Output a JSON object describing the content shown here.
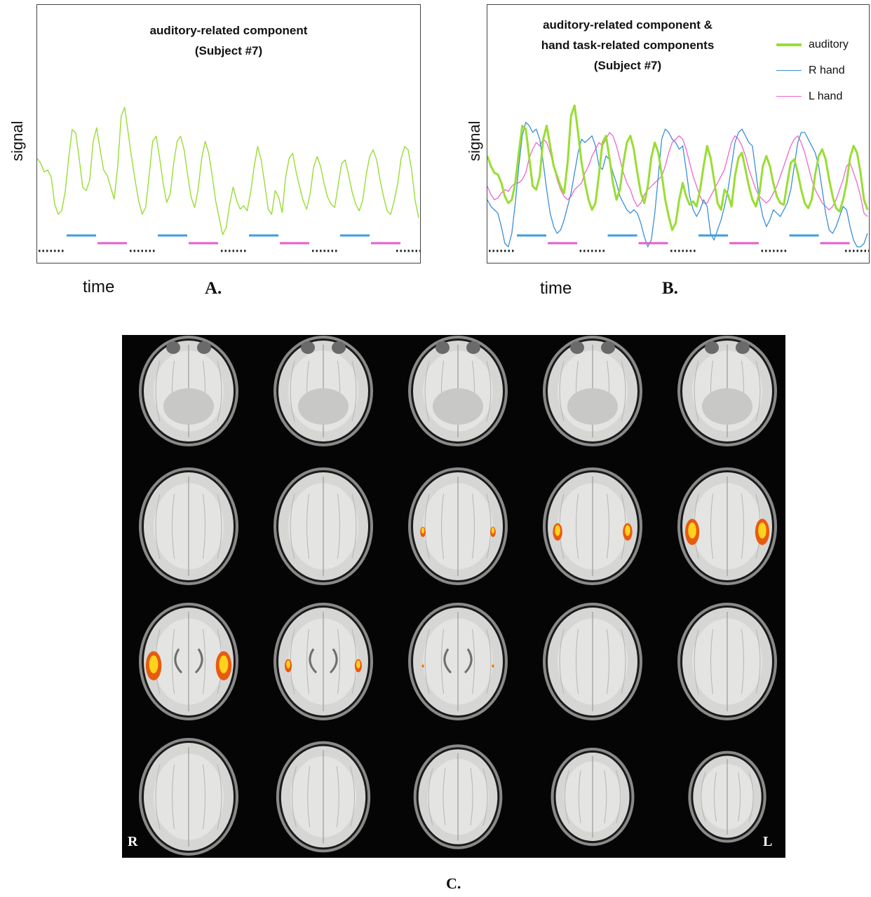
{
  "panel_a": {
    "title_line1": "auditory-related component",
    "title_line2": "(Subject #7)",
    "ylabel": "signal",
    "xlabel": "time",
    "panel_label": "A."
  },
  "panel_b": {
    "title_line1": "auditory-related component &",
    "title_line2": "hand task-related components",
    "title_line3": "(Subject #7)",
    "ylabel": "signal",
    "xlabel": "time",
    "panel_label": "B."
  },
  "panel_c": {
    "panel_label": "C.",
    "left_orientation": "R",
    "right_orientation": "L",
    "rows": 4,
    "columns": 5,
    "activation": [
      [
        0,
        0,
        0,
        0,
        0
      ],
      [
        0,
        0,
        0.35,
        0.6,
        0.9
      ],
      [
        1.0,
        0.45,
        0.05,
        0,
        0
      ],
      [
        0,
        0,
        0,
        0,
        0
      ]
    ]
  },
  "colors": {
    "auditory": "#99dd33",
    "r_hand": "#3a8fd8",
    "l_hand": "#ee66cc",
    "task_bar_blue": "#3a9ee0",
    "task_bar_pink": "#e45ccc",
    "rest_dots": "#222222"
  },
  "chart_data": [
    {
      "type": "line",
      "title": "auditory-related component (Subject #7)",
      "xlabel": "time",
      "ylabel": "signal",
      "grid": false,
      "x": [
        0,
        1,
        2,
        3,
        4,
        5,
        6,
        7,
        8,
        9,
        10,
        11,
        12,
        13,
        14,
        15,
        16,
        17,
        18,
        19,
        20,
        21,
        22,
        23,
        24,
        25,
        26,
        27,
        28,
        29,
        30,
        31,
        32,
        33,
        34,
        35,
        36,
        37,
        38,
        39,
        40,
        41,
        42,
        43,
        44,
        45,
        46,
        47,
        48,
        49,
        50,
        51,
        52,
        53,
        54,
        55,
        56,
        57,
        58,
        59,
        60,
        61,
        62,
        63,
        64,
        65,
        66,
        67,
        68,
        69,
        70,
        71,
        72,
        73,
        74,
        75,
        76,
        77,
        78,
        79,
        80,
        81,
        82,
        83,
        84,
        85,
        86,
        87,
        88,
        89,
        90,
        91,
        92,
        93,
        94,
        95,
        96,
        97,
        98,
        99,
        100,
        101,
        102,
        103,
        104,
        105,
        106,
        107,
        108,
        109
      ],
      "series": [
        {
          "name": "auditory",
          "values": [
            0.55,
            0.52,
            0.47,
            0.48,
            0.44,
            0.28,
            0.22,
            0.24,
            0.35,
            0.55,
            0.72,
            0.7,
            0.55,
            0.38,
            0.36,
            0.42,
            0.65,
            0.73,
            0.6,
            0.48,
            0.45,
            0.38,
            0.31,
            0.5,
            0.8,
            0.85,
            0.7,
            0.55,
            0.42,
            0.3,
            0.22,
            0.26,
            0.45,
            0.65,
            0.68,
            0.55,
            0.4,
            0.29,
            0.34,
            0.52,
            0.65,
            0.68,
            0.6,
            0.45,
            0.32,
            0.26,
            0.37,
            0.55,
            0.65,
            0.58,
            0.45,
            0.3,
            0.2,
            0.1,
            0.14,
            0.28,
            0.38,
            0.3,
            0.25,
            0.27,
            0.24,
            0.35,
            0.5,
            0.62,
            0.54,
            0.4,
            0.25,
            0.22,
            0.36,
            0.32,
            0.23,
            0.44,
            0.55,
            0.58,
            0.47,
            0.38,
            0.3,
            0.25,
            0.34,
            0.5,
            0.56,
            0.5,
            0.4,
            0.32,
            0.28,
            0.26,
            0.39,
            0.52,
            0.54,
            0.45,
            0.35,
            0.28,
            0.24,
            0.3,
            0.45,
            0.56,
            0.6,
            0.54,
            0.42,
            0.32,
            0.24,
            0.22,
            0.3,
            0.4,
            0.55,
            0.62,
            0.6,
            0.48,
            0.3,
            0.2
          ]
        }
      ]
    },
    {
      "type": "line",
      "title": "auditory-related component & hand task-related components (Subject #7)",
      "xlabel": "time",
      "ylabel": "signal",
      "grid": false,
      "legend": "top-right",
      "x": [
        0,
        1,
        2,
        3,
        4,
        5,
        6,
        7,
        8,
        9,
        10,
        11,
        12,
        13,
        14,
        15,
        16,
        17,
        18,
        19,
        20,
        21,
        22,
        23,
        24,
        25,
        26,
        27,
        28,
        29,
        30,
        31,
        32,
        33,
        34,
        35,
        36,
        37,
        38,
        39,
        40,
        41,
        42,
        43,
        44,
        45,
        46,
        47,
        48,
        49,
        50,
        51,
        52,
        53,
        54,
        55,
        56,
        57,
        58,
        59,
        60,
        61,
        62,
        63,
        64,
        65,
        66,
        67,
        68,
        69,
        70,
        71,
        72,
        73,
        74,
        75,
        76,
        77,
        78,
        79,
        80,
        81,
        82,
        83,
        84,
        85,
        86,
        87,
        88,
        89,
        90,
        91,
        92,
        93,
        94,
        95,
        96,
        97,
        98,
        99,
        100,
        101,
        102,
        103,
        104,
        105,
        106,
        107,
        108,
        109
      ],
      "series": [
        {
          "name": "auditory",
          "values": [
            0.56,
            0.5,
            0.46,
            0.45,
            0.4,
            0.32,
            0.28,
            0.3,
            0.4,
            0.58,
            0.74,
            0.72,
            0.55,
            0.38,
            0.36,
            0.44,
            0.66,
            0.74,
            0.62,
            0.5,
            0.44,
            0.38,
            0.34,
            0.52,
            0.8,
            0.86,
            0.7,
            0.52,
            0.4,
            0.3,
            0.24,
            0.28,
            0.45,
            0.64,
            0.68,
            0.55,
            0.4,
            0.3,
            0.36,
            0.52,
            0.64,
            0.68,
            0.6,
            0.46,
            0.34,
            0.28,
            0.38,
            0.55,
            0.64,
            0.58,
            0.45,
            0.3,
            0.2,
            0.12,
            0.16,
            0.3,
            0.4,
            0.32,
            0.27,
            0.29,
            0.26,
            0.36,
            0.5,
            0.62,
            0.55,
            0.42,
            0.28,
            0.24,
            0.36,
            0.33,
            0.26,
            0.44,
            0.55,
            0.58,
            0.48,
            0.38,
            0.3,
            0.26,
            0.34,
            0.5,
            0.56,
            0.5,
            0.4,
            0.32,
            0.28,
            0.27,
            0.4,
            0.52,
            0.54,
            0.46,
            0.36,
            0.28,
            0.25,
            0.3,
            0.45,
            0.56,
            0.6,
            0.54,
            0.42,
            0.32,
            0.25,
            0.23,
            0.3,
            0.4,
            0.55,
            0.62,
            0.58,
            0.46,
            0.3,
            0.24
          ]
        },
        {
          "name": "R hand",
          "values": [
            0.3,
            0.26,
            0.24,
            0.22,
            0.14,
            0.04,
            0.02,
            0.1,
            0.28,
            0.5,
            0.68,
            0.76,
            0.74,
            0.7,
            0.72,
            0.66,
            0.52,
            0.36,
            0.22,
            0.14,
            0.1,
            0.12,
            0.18,
            0.26,
            0.34,
            0.46,
            0.58,
            0.66,
            0.64,
            0.66,
            0.68,
            0.62,
            0.5,
            0.48,
            0.56,
            0.54,
            0.46,
            0.4,
            0.32,
            0.28,
            0.24,
            0.22,
            0.24,
            0.22,
            0.16,
            0.08,
            0.02,
            0.06,
            0.22,
            0.44,
            0.66,
            0.72,
            0.7,
            0.66,
            0.64,
            0.6,
            0.62,
            0.48,
            0.32,
            0.24,
            0.2,
            0.24,
            0.3,
            0.26,
            0.1,
            0.06,
            0.12,
            0.18,
            0.26,
            0.36,
            0.5,
            0.64,
            0.7,
            0.72,
            0.68,
            0.64,
            0.62,
            0.46,
            0.3,
            0.2,
            0.14,
            0.18,
            0.24,
            0.22,
            0.2,
            0.24,
            0.28,
            0.36,
            0.5,
            0.64,
            0.7,
            0.7,
            0.66,
            0.62,
            0.58,
            0.5,
            0.36,
            0.22,
            0.12,
            0.1,
            0.14,
            0.2,
            0.26,
            0.24,
            0.14,
            0.06,
            0.02,
            0.02,
            0.04,
            0.1
          ]
        },
        {
          "name": "L hand",
          "values": [
            0.38,
            0.33,
            0.3,
            0.31,
            0.34,
            0.36,
            0.35,
            0.38,
            0.4,
            0.4,
            0.42,
            0.46,
            0.55,
            0.6,
            0.64,
            0.62,
            0.66,
            0.64,
            0.58,
            0.5,
            0.42,
            0.36,
            0.32,
            0.3,
            0.32,
            0.36,
            0.38,
            0.4,
            0.46,
            0.5,
            0.56,
            0.6,
            0.64,
            0.62,
            0.66,
            0.7,
            0.68,
            0.62,
            0.54,
            0.46,
            0.4,
            0.36,
            0.3,
            0.26,
            0.28,
            0.33,
            0.36,
            0.38,
            0.4,
            0.42,
            0.44,
            0.5,
            0.58,
            0.64,
            0.66,
            0.68,
            0.66,
            0.6,
            0.52,
            0.44,
            0.38,
            0.32,
            0.28,
            0.28,
            0.32,
            0.36,
            0.4,
            0.44,
            0.48,
            0.56,
            0.64,
            0.68,
            0.66,
            0.62,
            0.56,
            0.48,
            0.42,
            0.36,
            0.32,
            0.3,
            0.28,
            0.3,
            0.34,
            0.38,
            0.44,
            0.5,
            0.56,
            0.62,
            0.66,
            0.68,
            0.64,
            0.58,
            0.5,
            0.42,
            0.36,
            0.32,
            0.28,
            0.26,
            0.24,
            0.26,
            0.3,
            0.36,
            0.42,
            0.5,
            0.52,
            0.46,
            0.4,
            0.32,
            0.22,
            0.2
          ]
        }
      ]
    }
  ]
}
